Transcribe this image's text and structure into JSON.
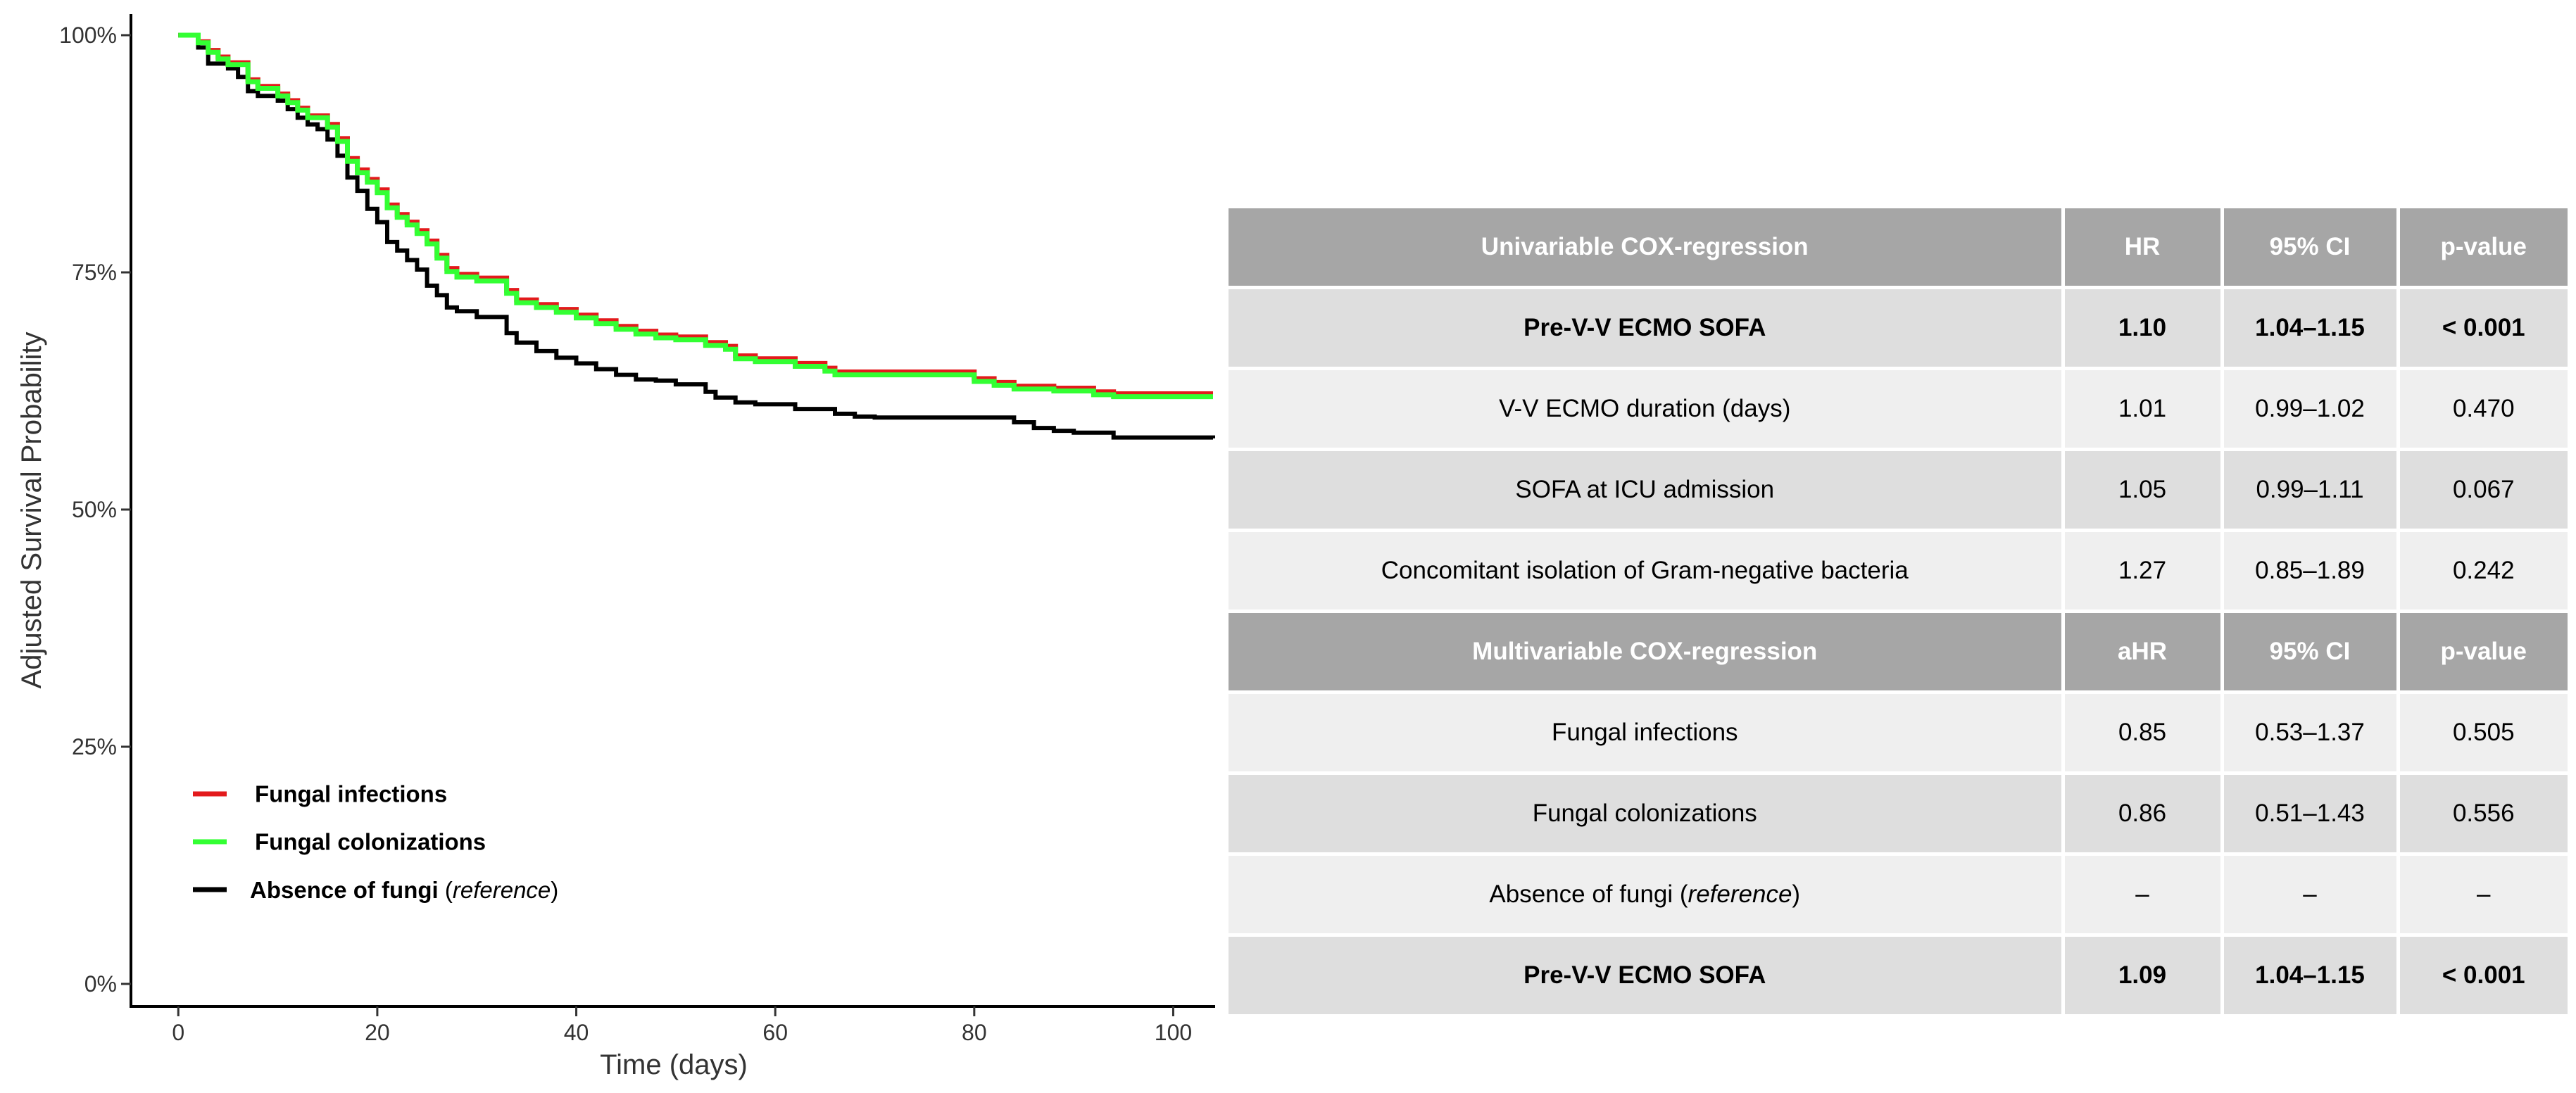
{
  "chart_data": {
    "type": "line",
    "step": true,
    "xlabel": "Time (days)",
    "ylabel": "Adjusted Survival Probability",
    "xlim": [
      -2,
      104
    ],
    "ylim": [
      0,
      100
    ],
    "x_ticks": [
      0,
      20,
      40,
      60,
      80,
      100
    ],
    "x_tick_labels": [
      "0",
      "20",
      "40",
      "60",
      "80",
      "100"
    ],
    "y_ticks": [
      0,
      25,
      50,
      75,
      100
    ],
    "y_tick_labels": [
      "0%",
      "25%",
      "50%",
      "75%",
      "100%"
    ],
    "legend_position": "bottom-left",
    "series": [
      {
        "name": "Fungal infections",
        "label": "Fungal infections",
        "color": "#e31a1c",
        "x": [
          0,
          2,
          3,
          4,
          5,
          7,
          8,
          10,
          11,
          12,
          13,
          15,
          16,
          17,
          18,
          19,
          20,
          21,
          22,
          23,
          24,
          25,
          26,
          27,
          28,
          30,
          33,
          34,
          36,
          38,
          40,
          42,
          44,
          46,
          48,
          50,
          53,
          55,
          56,
          58,
          62,
          65,
          66,
          68,
          80,
          82,
          84,
          86,
          88,
          92,
          94,
          104
        ],
        "y": [
          100,
          99.3,
          98.4,
          97.7,
          97.1,
          95.3,
          94.6,
          93.8,
          93.1,
          92.3,
          91.5,
          90.6,
          89.1,
          87.0,
          85.8,
          84.8,
          83.7,
          82.1,
          81.1,
          80.3,
          79.4,
          78.3,
          76.8,
          75.4,
          74.8,
          74.4,
          73.1,
          72.1,
          71.6,
          71.1,
          70.5,
          69.9,
          69.3,
          68.8,
          68.4,
          68.2,
          67.6,
          67.2,
          66.2,
          65.9,
          65.4,
          64.9,
          64.5,
          64.5,
          63.8,
          63.4,
          63.0,
          63.0,
          62.8,
          62.4,
          62.2,
          62.2
        ]
      },
      {
        "name": "Fungal colonizations",
        "label": "Fungal colonizations",
        "color": "#33ff33",
        "x": [
          0,
          2,
          3,
          4,
          5,
          7,
          8,
          10,
          11,
          12,
          13,
          15,
          16,
          17,
          18,
          19,
          20,
          21,
          22,
          23,
          24,
          25,
          26,
          27,
          28,
          30,
          33,
          34,
          36,
          38,
          40,
          42,
          44,
          46,
          48,
          50,
          53,
          55,
          56,
          58,
          62,
          65,
          66,
          68,
          80,
          82,
          84,
          86,
          88,
          92,
          94,
          104
        ],
        "y": [
          100,
          99.2,
          98.2,
          97.5,
          96.9,
          95.1,
          94.4,
          93.6,
          92.9,
          92.1,
          91.3,
          90.3,
          88.8,
          86.7,
          85.5,
          84.5,
          83.4,
          81.8,
          80.8,
          80.0,
          79.1,
          78.0,
          76.5,
          75.1,
          74.5,
          74.1,
          72.8,
          71.8,
          71.3,
          70.8,
          70.2,
          69.6,
          69.0,
          68.5,
          68.1,
          67.9,
          67.3,
          66.9,
          65.9,
          65.6,
          65.1,
          64.6,
          64.2,
          64.2,
          63.5,
          63.1,
          62.7,
          62.7,
          62.5,
          62.1,
          61.9,
          61.9
        ]
      },
      {
        "name": "Absence of fungi (reference)",
        "label_main": "Absence of fungi",
        "label_open": " (",
        "label_ref": "reference",
        "label_close": ")",
        "color": "#000000",
        "x": [
          0,
          2,
          3,
          5,
          6,
          7,
          8,
          10,
          11,
          12,
          13,
          14,
          15,
          16,
          17,
          18,
          19,
          20,
          21,
          22,
          23,
          24,
          25,
          26,
          27,
          28,
          30,
          33,
          34,
          36,
          38,
          40,
          42,
          44,
          46,
          48,
          50,
          53,
          54,
          56,
          58,
          62,
          66,
          68,
          70,
          84,
          86,
          88,
          90,
          94,
          104
        ],
        "y": [
          100,
          98.7,
          97.0,
          96.5,
          95.6,
          94.1,
          93.6,
          93.1,
          92.2,
          91.3,
          90.6,
          90.1,
          89.0,
          87.3,
          85.0,
          83.6,
          81.7,
          80.3,
          78.2,
          77.3,
          76.3,
          75.3,
          73.6,
          72.6,
          71.3,
          70.9,
          70.3,
          68.6,
          67.6,
          66.7,
          66.0,
          65.4,
          64.8,
          64.2,
          63.7,
          63.6,
          63.2,
          62.4,
          61.8,
          61.3,
          61.1,
          60.6,
          60.1,
          59.8,
          59.7,
          59.2,
          58.6,
          58.3,
          58.1,
          57.6,
          57.5
        ]
      }
    ]
  },
  "table": {
    "uni_header": {
      "var": "Univariable COX-regression",
      "hr": "HR",
      "ci": "95% CI",
      "p": "p-value"
    },
    "uni_rows": [
      {
        "var": "Pre-V-V ECMO SOFA",
        "hr": "1.10",
        "ci": "1.04–1.15",
        "p": "< 0.001"
      },
      {
        "var": "V-V ECMO duration (days)",
        "hr": "1.01",
        "ci": "0.99–1.02",
        "p": "0.470"
      },
      {
        "var": "SOFA at ICU admission",
        "hr": "1.05",
        "ci": "0.99–1.11",
        "p": "0.067"
      },
      {
        "var": "Concomitant isolation of Gram-negative bacteria",
        "hr": "1.27",
        "ci": "0.85–1.89",
        "p": "0.242"
      }
    ],
    "multi_header": {
      "var": "Multivariable COX-regression",
      "hr": "aHR",
      "ci": "95% CI",
      "p": "p-value"
    },
    "multi_rows": [
      {
        "var": "Fungal infections",
        "hr": "0.85",
        "ci": "0.53–1.37",
        "p": "0.505"
      },
      {
        "var": "Fungal colonizations",
        "hr": "0.86",
        "ci": "0.51–1.43",
        "p": "0.556"
      },
      {
        "var_main": "Absence of fungi",
        "var_open": " (",
        "var_ref": "reference",
        "var_close": ")",
        "hr": "–",
        "ci": "–",
        "p": "–"
      },
      {
        "var": "Pre-V-V ECMO SOFA",
        "hr": "1.09",
        "ci": "1.04–1.15",
        "p": "< 0.001"
      }
    ]
  }
}
